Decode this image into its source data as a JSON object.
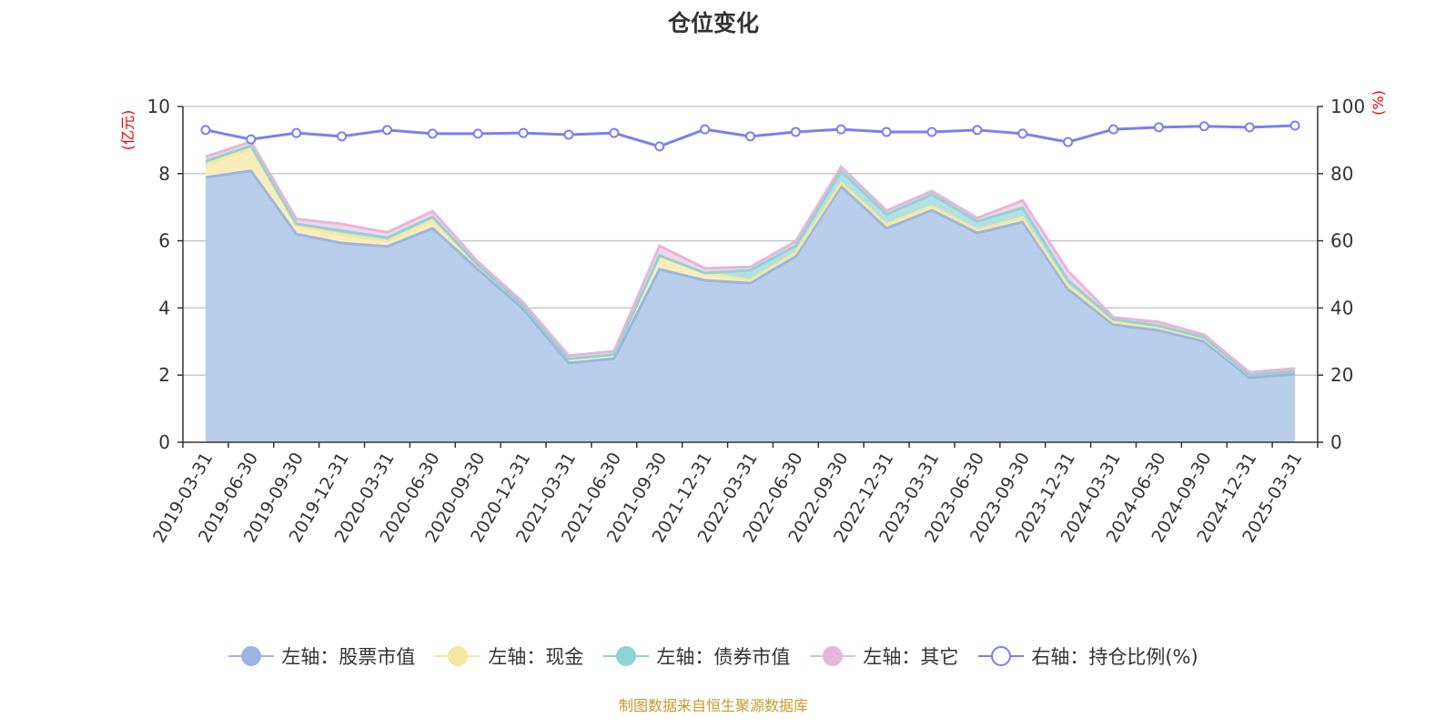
{
  "chart_data": {
    "type": "area",
    "title": "仓位变化",
    "left_axis": {
      "label": "(亿元)",
      "ylim": [
        0,
        10
      ],
      "ticks": [
        0,
        2,
        4,
        6,
        8,
        10
      ]
    },
    "right_axis": {
      "label": "(%)",
      "ylim": [
        0,
        100
      ],
      "ticks": [
        0,
        20,
        40,
        60,
        80,
        100
      ]
    },
    "grid": true,
    "legend_position": "bottom",
    "categories": [
      "2019-03-31",
      "2019-06-30",
      "2019-09-30",
      "2019-12-31",
      "2020-03-31",
      "2020-06-30",
      "2020-09-30",
      "2020-12-31",
      "2021-03-31",
      "2021-06-30",
      "2021-09-30",
      "2021-12-31",
      "2022-03-31",
      "2022-06-30",
      "2022-09-30",
      "2022-12-31",
      "2023-03-31",
      "2023-06-30",
      "2023-09-30",
      "2023-12-31",
      "2024-03-31",
      "2024-06-30",
      "2024-09-30",
      "2024-12-31",
      "2025-03-31"
    ],
    "series": [
      {
        "name": "左轴：股票市值",
        "axis": "left",
        "stacked": true,
        "color": "#9bb5e0",
        "values": [
          7.89,
          8.08,
          6.2,
          5.93,
          5.83,
          6.37,
          5.15,
          3.96,
          2.36,
          2.49,
          5.15,
          4.82,
          4.74,
          5.53,
          7.62,
          6.37,
          6.91,
          6.23,
          6.56,
          4.55,
          3.5,
          3.33,
          3.0,
          1.92,
          2.03
        ]
      },
      {
        "name": "左轴：现金",
        "axis": "left",
        "stacked": true,
        "color": "#f5e6a0",
        "values": [
          0.38,
          0.67,
          0.25,
          0.25,
          0.16,
          0.24,
          0.1,
          0.1,
          0.12,
          0.12,
          0.41,
          0.22,
          0.08,
          0.12,
          0.1,
          0.12,
          0.12,
          0.1,
          0.12,
          0.12,
          0.08,
          0.08,
          0.08,
          0.08,
          0.08
        ]
      },
      {
        "name": "左轴：债券市值",
        "axis": "left",
        "stacked": true,
        "color": "#8fd3d3",
        "values": [
          0.1,
          0.08,
          0.05,
          0.12,
          0.1,
          0.1,
          0.03,
          0.0,
          0.0,
          0.0,
          0.0,
          0.0,
          0.3,
          0.2,
          0.35,
          0.3,
          0.35,
          0.25,
          0.3,
          0.15,
          0.08,
          0.06,
          0.04,
          0.0,
          0.0
        ]
      },
      {
        "name": "左轴：其它",
        "axis": "left",
        "stacked": true,
        "color": "#e6b6da",
        "values": [
          0.13,
          0.12,
          0.15,
          0.2,
          0.16,
          0.17,
          0.1,
          0.1,
          0.1,
          0.1,
          0.29,
          0.14,
          0.1,
          0.13,
          0.13,
          0.11,
          0.1,
          0.1,
          0.22,
          0.28,
          0.06,
          0.11,
          0.08,
          0.08,
          0.09
        ]
      },
      {
        "name": "右轴：持仓比例(%)",
        "axis": "right",
        "stacked": false,
        "color": "#7b7ff0",
        "values": [
          93.0,
          90.2,
          92.1,
          91.1,
          93.0,
          91.9,
          91.9,
          92.1,
          91.6,
          92.1,
          88.1,
          93.2,
          91.1,
          92.4,
          93.2,
          92.4,
          92.4,
          93.0,
          91.9,
          89.4,
          93.2,
          93.8,
          94.1,
          93.8,
          94.3
        ]
      }
    ]
  },
  "footer": "制图数据来自恒生聚源数据库"
}
